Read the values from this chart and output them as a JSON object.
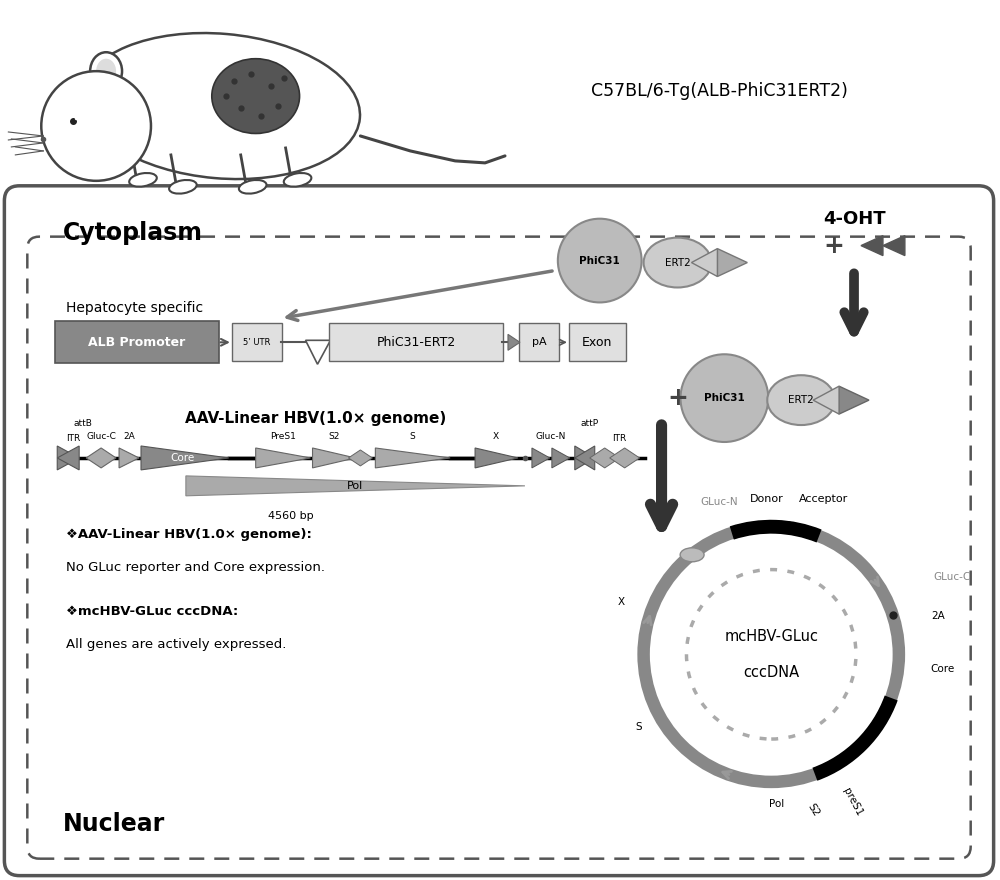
{
  "bg_color": "#ffffff",
  "title_mouse": "C57BL/6-Tg(ALB-PhiC31ERT2)",
  "label_cytoplasm": "Cytoplasm",
  "label_nuclear": "Nuclear",
  "label_4oht": "4-OHT",
  "label_hepatocyte": "Hepatocyte specific",
  "label_alb_promoter": "ALB Promoter",
  "label_5utr": "5’ UTR",
  "label_phic31ert2_box": "PhiC31-ERT2",
  "label_pa": "pA",
  "label_exon": "Exon",
  "label_aav_title": "AAV-Linear HBV(1.0× genome)",
  "label_attB": "attB",
  "label_attP": "attP",
  "label_ITR_left": "ITR",
  "label_ITR_right": "ITR",
  "label_GlucC": "Gluc-C",
  "label_2A_left": "2A",
  "label_Core": "Core",
  "label_PreS1": "PreS1",
  "label_S2": "S2",
  "label_S": "S",
  "label_X": "X",
  "label_GlucN": "Gluc-N",
  "label_Pol": "Pol",
  "label_4560bp": "4560 bp",
  "label_phic31_cyto": "PhiC31",
  "label_ert2_cyto": "ERT2",
  "label_phic31_nuclear": "PhiC31",
  "label_ert2_nuclear": "ERT2",
  "label_bullet1_title": "❖AAV-Linear HBV(1.0× genome):",
  "label_bullet1_text": "No GLuc reporter and Core expression.",
  "label_bullet2_title": "❖mcHBV-GLuc cccDNA:",
  "label_bullet2_text": "All genes are actively expressed.",
  "label_ccdna_center1": "mcHBV-GLuc",
  "label_ccdna_center2": "cccDNA",
  "label_donor": "Donor",
  "label_acceptor": "Acceptor",
  "label_GLucN_circle": "GLuc-N",
  "label_GLucC_circle": "GLuc-C",
  "label_2A_circle": "2A",
  "label_Core_circle": "Core",
  "label_Pol_circle": "Pol",
  "label_S_circle": "S",
  "label_S2_circle": "S2",
  "label_preS1_circle": "preS1",
  "label_X_circle": "X"
}
